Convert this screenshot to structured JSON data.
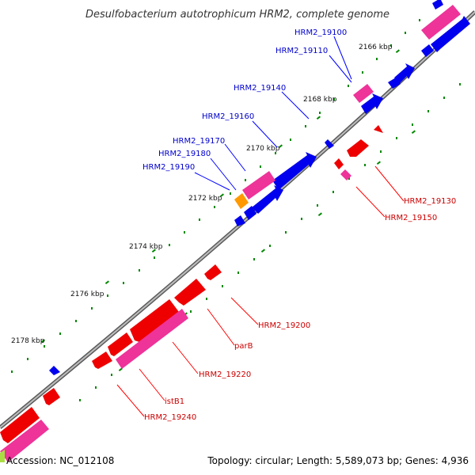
{
  "title": "Desulfobacterium autotrophicum HRM2, complete genome",
  "footer": {
    "accession": "Accession: NC_012108",
    "summary": "Topology: circular; Length: 5,589,073 bp; Genes: 4,936"
  },
  "colors": {
    "backbone": "#888888",
    "forward_cds": "#0000ee",
    "reverse_cds": "#ee0000",
    "rna_or_gene": "#ee3399",
    "highlight": "#ff9900",
    "ticks": "#007700",
    "forward_label": "#0000cc",
    "reverse_label": "#cc0000"
  },
  "scale_labels": [
    "2166 kbp",
    "2168 kbp",
    "2170 kbp",
    "2172 kbp",
    "2174 kbp",
    "2176 kbp",
    "2178 kbp"
  ],
  "forward_labels": [
    "HRM2_19100",
    "HRM2_19110",
    "HRM2_19140",
    "HRM2_19160",
    "HRM2_19170",
    "HRM2_19180",
    "HRM2_19190"
  ],
  "reverse_labels": [
    "HRM2_19130",
    "HRM2_19150",
    "HRM2_19200",
    "parB",
    "HRM2_19220",
    "istB1",
    "HRM2_19240"
  ]
}
